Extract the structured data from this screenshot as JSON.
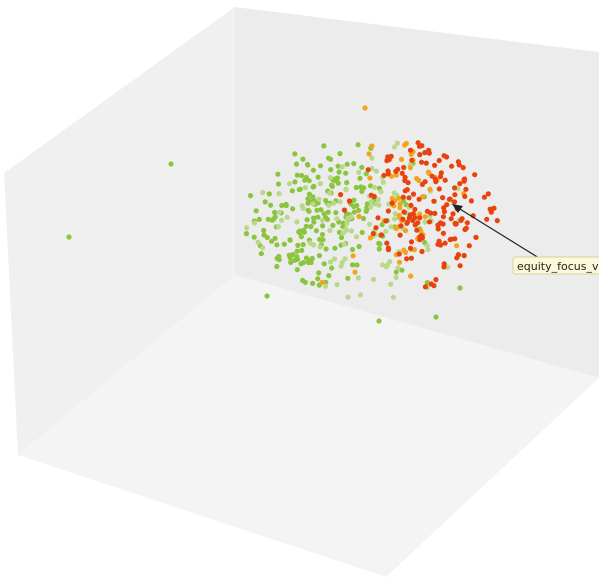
{
  "colors": {
    "green": "#8bc53f",
    "light_green": "#b8d98a",
    "orange": "#f5a21c",
    "red": "#e8420e",
    "pane": "#eeeeee",
    "leader": "#222222"
  },
  "annotation": {
    "label": "equity_focus_vec"
  },
  "chart_data": {
    "type": "scatter",
    "title": "",
    "dimensions": 3,
    "series": [
      {
        "name": "",
        "color": "#8bc53f",
        "count": 215
      },
      {
        "name": "",
        "color": "#b8d98a",
        "count": 110
      },
      {
        "name": "",
        "color": "#f5a21c",
        "count": 55
      },
      {
        "name": "",
        "color": "#e8420e",
        "count": 160
      }
    ],
    "highlighted_point_label": "equity_focus_vec",
    "axes_ticks": false,
    "grid": false
  }
}
